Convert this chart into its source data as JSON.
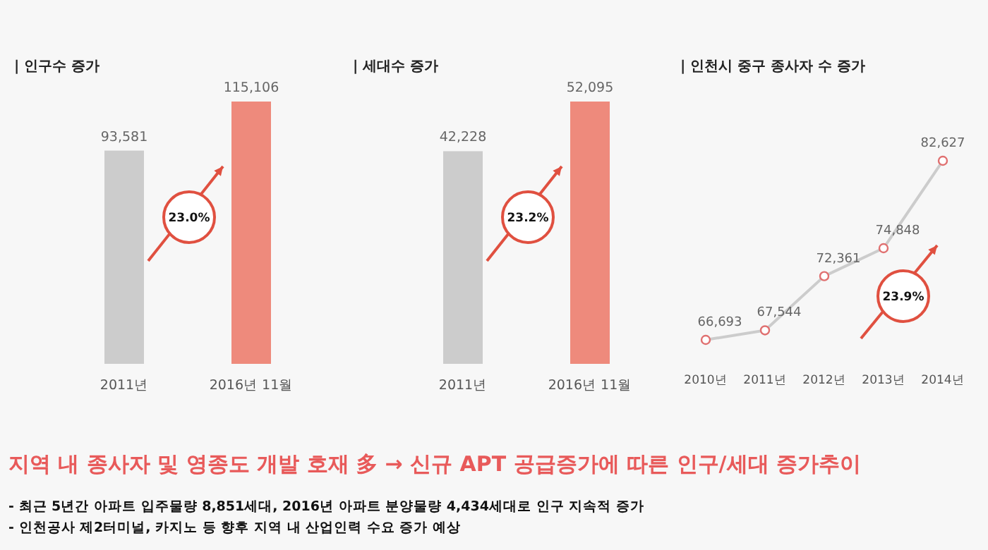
{
  "chart_data": [
    {
      "type": "bar",
      "title": "| 인구수 증가",
      "categories": [
        "2011년",
        "2016년 11월"
      ],
      "values": [
        93581,
        115106
      ],
      "colors": [
        "#cccccc",
        "#ee8a7c"
      ],
      "value_labels": [
        "93,581",
        "115,106"
      ],
      "annotations": [
        "23.0%"
      ]
    },
    {
      "type": "bar",
      "title": "| 세대수 증가",
      "categories": [
        "2011년",
        "2016년 11월"
      ],
      "values": [
        42228,
        52095
      ],
      "colors": [
        "#cccccc",
        "#ee8a7c"
      ],
      "value_labels": [
        "42,228",
        "52,095"
      ],
      "annotations": [
        "23.2%"
      ]
    },
    {
      "type": "line",
      "title": "| 인천시 중구 종사자 수 증가",
      "categories": [
        "2010년",
        "2011년",
        "2012년",
        "2013년",
        "2014년"
      ],
      "series": [
        {
          "color": "#cccccc",
          "values": [
            66693,
            67544,
            72361,
            74848,
            82627
          ],
          "value_labels": [
            "66,693",
            "67,544",
            "72,361",
            "74,848",
            "82,627"
          ]
        }
      ],
      "marker": "circle",
      "annotations": [
        "23.9%"
      ]
    },
    {
      "type": "other",
      "title": "지역 내 종사자 및 영종도 개발 호재 多 → 신규 APT 공급증가에 따른 인구/세대 증가추이",
      "annotations": [
        "- 최근 5년간 아파트 입주물량 8,851세대,  2016년 아파트 분양물량 4,434세대로 인구 지속적 증가",
        "- 인천공사 제2터미널, 카지노 등 향후 지역 내 산업인력 수요 증가 예상"
      ]
    }
  ]
}
